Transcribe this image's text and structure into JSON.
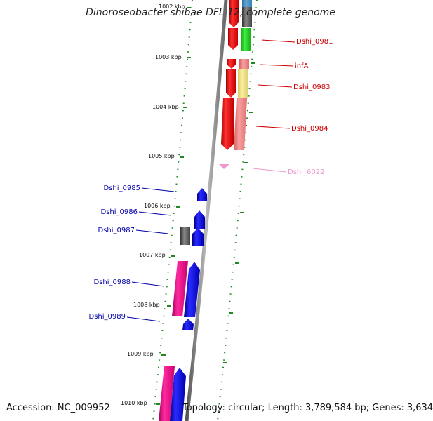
{
  "title": "Dinoroseobacter shibae DFL 12, complete genome",
  "accession_label": "Accession: NC_009952",
  "summary_label": "Topology: circular; Length: 3,789,584 bp; Genes: 3,634",
  "ticks": [
    "1002 kbp",
    "1003 kbp",
    "1004 kbp",
    "1005 kbp",
    "1006 kbp",
    "1007 kbp",
    "1008 kbp",
    "1009 kbp",
    "1010 kbp"
  ],
  "genes_right": [
    "Dshi_0981",
    "infA",
    "Dshi_0983",
    "Dshi_0984",
    "Dshi_6022"
  ],
  "genes_left": [
    "Dshi_0985",
    "Dshi_0986",
    "Dshi_0987",
    "Dshi_0988",
    "Dshi_0989"
  ],
  "colors": {
    "forward_gene": "#ee1111",
    "reverse_gene": "#1111dd",
    "pseudo_gene": "#ee99cc",
    "tick": "#228822",
    "backbone": "#888888",
    "label_right": "#cc0000",
    "label_left": "#0000aa"
  }
}
